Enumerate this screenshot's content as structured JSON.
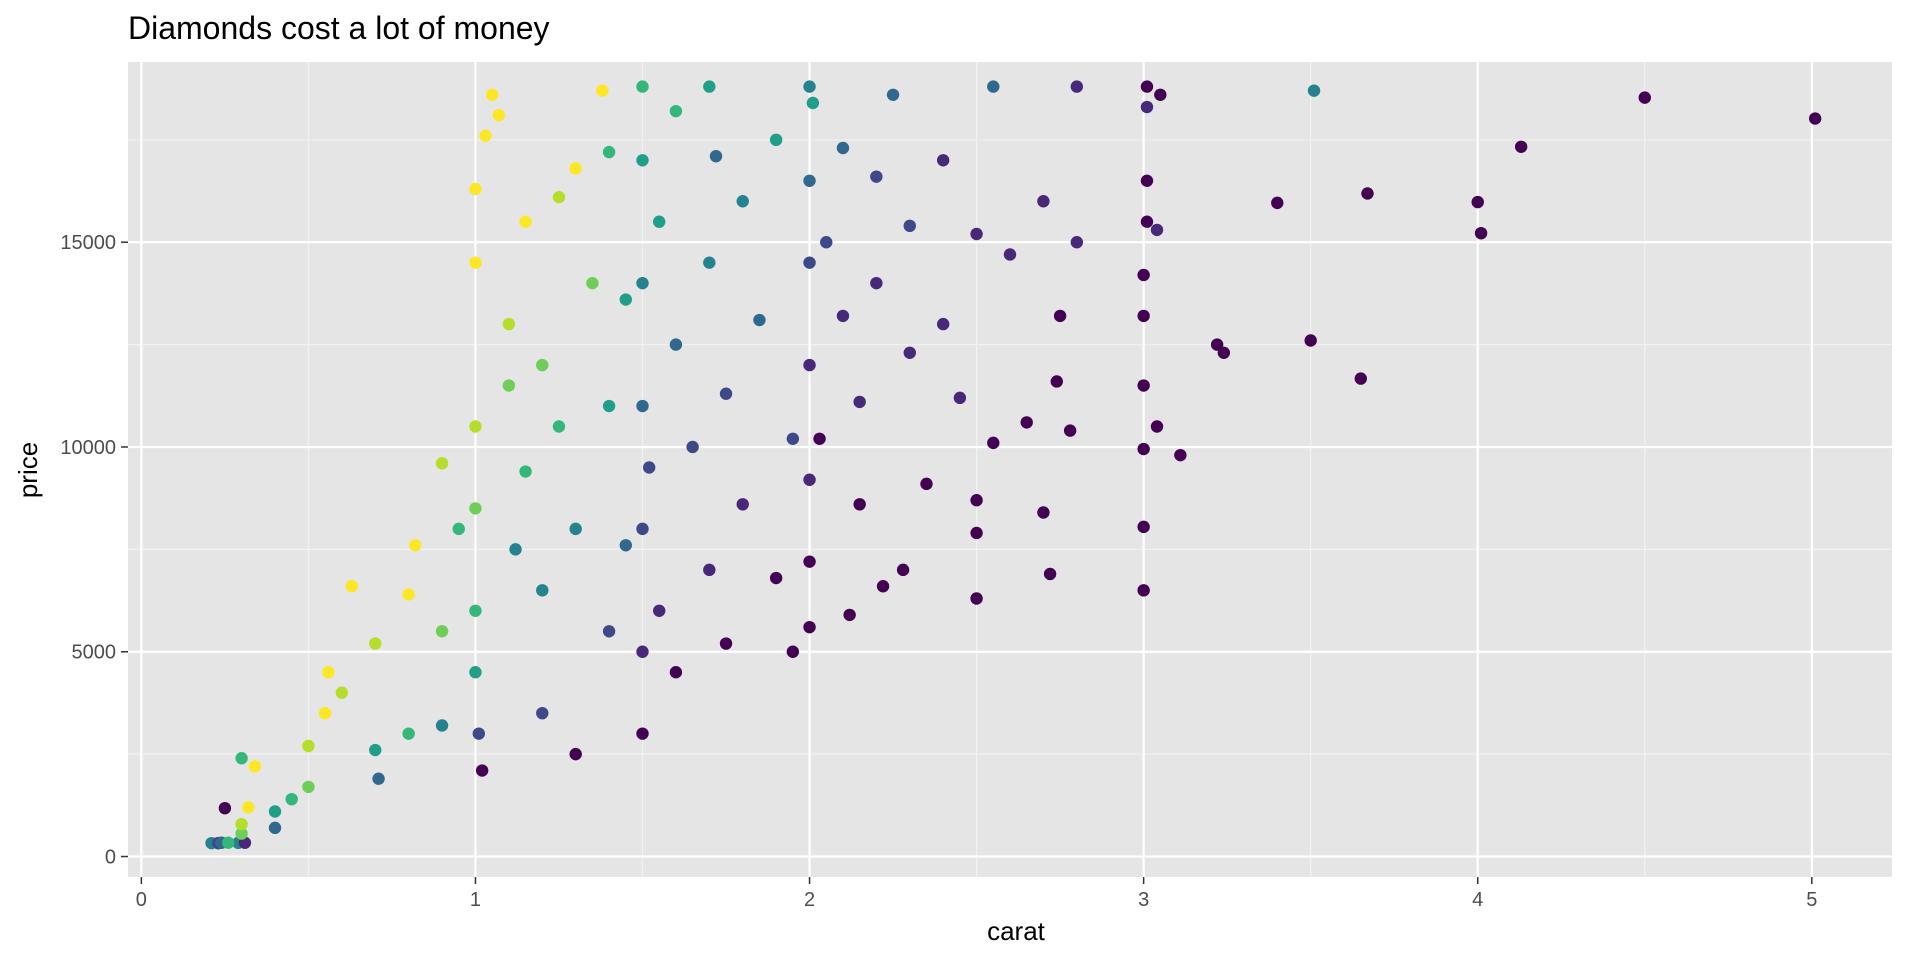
{
  "chart_data": {
    "type": "scatter",
    "title": "Diamonds cost a lot of money",
    "xlabel": "carat",
    "ylabel": "price",
    "xlim": [
      -0.04,
      5.24
    ],
    "ylim": [
      -500,
      19400
    ],
    "x_ticks": [
      0,
      1,
      2,
      3,
      4,
      5
    ],
    "x_tick_labels": [
      "0",
      "1",
      "2",
      "3",
      "4",
      "5"
    ],
    "x_minor_ticks": [
      0.5,
      1.5,
      2.5,
      3.5,
      4.5
    ],
    "y_ticks": [
      0,
      5000,
      10000,
      15000
    ],
    "y_tick_labels": [
      "0",
      "5000",
      "10000",
      "15000"
    ],
    "y_minor_ticks": [
      2500,
      7500,
      12500,
      17500
    ],
    "grid": true,
    "legend": "none",
    "colors": {
      "panel_background": "#e5e5e5",
      "grid_major": "#ffffff",
      "grid_minor": "#f2f2f2",
      "palette": [
        "#440154",
        "#482878",
        "#3e4989",
        "#31688e",
        "#26828e",
        "#1f9e89",
        "#35b779",
        "#6ece58",
        "#b5de2b",
        "#fde725"
      ]
    },
    "points_note_free": true,
    "points": [
      [
        0.23,
        326,
        5
      ],
      [
        0.21,
        326,
        4
      ],
      [
        0.23,
        327,
        2
      ],
      [
        0.29,
        334,
        4
      ],
      [
        0.31,
        335,
        1
      ],
      [
        0.24,
        336,
        3
      ],
      [
        0.26,
        337,
        6
      ],
      [
        0.3,
        560,
        7
      ],
      [
        0.3,
        790,
        8
      ],
      [
        0.32,
        1200,
        9
      ],
      [
        0.25,
        1180,
        0
      ],
      [
        0.34,
        2200,
        9
      ],
      [
        0.3,
        2400,
        6
      ],
      [
        0.4,
        1100,
        5
      ],
      [
        0.4,
        700,
        3
      ],
      [
        0.45,
        1400,
        6
      ],
      [
        0.5,
        1700,
        7
      ],
      [
        0.5,
        2700,
        8
      ],
      [
        0.55,
        3500,
        9
      ],
      [
        0.56,
        4500,
        9
      ],
      [
        0.6,
        4000,
        8
      ],
      [
        0.63,
        6600,
        9
      ],
      [
        0.7,
        5200,
        8
      ],
      [
        0.7,
        2600,
        5
      ],
      [
        0.71,
        1900,
        3
      ],
      [
        0.8,
        3000,
        6
      ],
      [
        0.8,
        6400,
        9
      ],
      [
        0.82,
        7600,
        9
      ],
      [
        0.9,
        3200,
        4
      ],
      [
        0.9,
        5500,
        7
      ],
      [
        0.9,
        9600,
        8
      ],
      [
        0.95,
        8000,
        6
      ],
      [
        1.0,
        4500,
        5
      ],
      [
        1.0,
        6000,
        6
      ],
      [
        1.0,
        8500,
        7
      ],
      [
        1.0,
        10500,
        8
      ],
      [
        1.0,
        14500,
        9
      ],
      [
        1.0,
        16300,
        9
      ],
      [
        1.02,
        2100,
        0
      ],
      [
        1.01,
        3000,
        2
      ],
      [
        1.03,
        17600,
        9
      ],
      [
        1.05,
        18600,
        9
      ],
      [
        1.07,
        18100,
        9
      ],
      [
        1.1,
        13000,
        8
      ],
      [
        1.1,
        11500,
        7
      ],
      [
        1.12,
        7500,
        4
      ],
      [
        1.15,
        9400,
        6
      ],
      [
        1.15,
        15500,
        9
      ],
      [
        1.2,
        6500,
        4
      ],
      [
        1.2,
        12000,
        7
      ],
      [
        1.2,
        3500,
        2
      ],
      [
        1.25,
        16100,
        8
      ],
      [
        1.25,
        10500,
        6
      ],
      [
        1.3,
        16800,
        9
      ],
      [
        1.3,
        8000,
        4
      ],
      [
        1.3,
        2500,
        0
      ],
      [
        1.35,
        14000,
        7
      ],
      [
        1.38,
        18700,
        9
      ],
      [
        1.4,
        11000,
        5
      ],
      [
        1.4,
        5500,
        2
      ],
      [
        1.4,
        17200,
        6
      ],
      [
        1.45,
        7600,
        3
      ],
      [
        1.45,
        13600,
        5
      ],
      [
        1.5,
        3000,
        0
      ],
      [
        1.5,
        5000,
        1
      ],
      [
        1.5,
        8000,
        2
      ],
      [
        1.5,
        11000,
        3
      ],
      [
        1.5,
        14000,
        4
      ],
      [
        1.5,
        17000,
        5
      ],
      [
        1.5,
        18800,
        6
      ],
      [
        1.52,
        9500,
        2
      ],
      [
        1.55,
        15500,
        5
      ],
      [
        1.55,
        6000,
        1
      ],
      [
        1.6,
        12500,
        3
      ],
      [
        1.6,
        18200,
        6
      ],
      [
        1.6,
        4500,
        0
      ],
      [
        1.65,
        10000,
        2
      ],
      [
        1.7,
        14500,
        4
      ],
      [
        1.7,
        18800,
        5
      ],
      [
        1.7,
        7000,
        1
      ],
      [
        1.72,
        17100,
        3
      ],
      [
        1.75,
        5200,
        0
      ],
      [
        1.75,
        11300,
        2
      ],
      [
        1.8,
        16000,
        4
      ],
      [
        1.8,
        8600,
        1
      ],
      [
        1.85,
        13100,
        3
      ],
      [
        1.9,
        6800,
        0
      ],
      [
        1.9,
        17500,
        5
      ],
      [
        1.95,
        10200,
        2
      ],
      [
        1.95,
        5000,
        0
      ],
      [
        2.0,
        5600,
        0
      ],
      [
        2.0,
        7200,
        0
      ],
      [
        2.0,
        9200,
        1
      ],
      [
        2.0,
        12000,
        1
      ],
      [
        2.0,
        14500,
        2
      ],
      [
        2.0,
        16500,
        3
      ],
      [
        2.0,
        18800,
        4
      ],
      [
        2.01,
        18400,
        5
      ],
      [
        2.03,
        10200,
        0
      ],
      [
        2.05,
        15000,
        2
      ],
      [
        2.1,
        13200,
        1
      ],
      [
        2.1,
        17300,
        3
      ],
      [
        2.12,
        5900,
        0
      ],
      [
        2.15,
        11100,
        1
      ],
      [
        2.15,
        8600,
        0
      ],
      [
        2.2,
        16600,
        2
      ],
      [
        2.2,
        14000,
        1
      ],
      [
        2.22,
        6600,
        0
      ],
      [
        2.25,
        18600,
        3
      ],
      [
        2.28,
        7000,
        0
      ],
      [
        2.3,
        12300,
        1
      ],
      [
        2.3,
        15400,
        2
      ],
      [
        2.35,
        9100,
        0
      ],
      [
        2.4,
        17000,
        1
      ],
      [
        2.4,
        13000,
        1
      ],
      [
        2.45,
        11200,
        1
      ],
      [
        2.5,
        6300,
        0
      ],
      [
        2.5,
        8700,
        0
      ],
      [
        2.5,
        7900,
        0
      ],
      [
        2.5,
        15200,
        1
      ],
      [
        2.55,
        18800,
        3
      ],
      [
        2.55,
        10100,
        0
      ],
      [
        2.6,
        14700,
        1
      ],
      [
        2.65,
        10600,
        0
      ],
      [
        2.7,
        8400,
        0
      ],
      [
        2.7,
        16000,
        1
      ],
      [
        2.72,
        6900,
        0
      ],
      [
        2.74,
        11600,
        0
      ],
      [
        2.75,
        13200,
        0
      ],
      [
        2.78,
        10400,
        0
      ],
      [
        2.8,
        18800,
        1
      ],
      [
        2.8,
        15000,
        1
      ],
      [
        3.0,
        6500,
        0
      ],
      [
        3.0,
        8050,
        0
      ],
      [
        3.0,
        9950,
        0
      ],
      [
        3.0,
        11500,
        0
      ],
      [
        3.0,
        13200,
        0
      ],
      [
        3.0,
        14200,
        0
      ],
      [
        3.01,
        15500,
        0
      ],
      [
        3.01,
        16500,
        0
      ],
      [
        3.01,
        18300,
        1
      ],
      [
        3.01,
        18800,
        0
      ],
      [
        3.04,
        10500,
        0
      ],
      [
        3.04,
        15300,
        1
      ],
      [
        3.05,
        18600,
        0
      ],
      [
        3.11,
        9800,
        0
      ],
      [
        3.22,
        12500,
        0
      ],
      [
        3.24,
        12300,
        0
      ],
      [
        3.4,
        15960,
        0
      ],
      [
        3.5,
        12600,
        0
      ],
      [
        3.51,
        18700,
        4
      ],
      [
        3.65,
        11670,
        0
      ],
      [
        3.67,
        16190,
        0
      ],
      [
        4.0,
        15980,
        0
      ],
      [
        4.01,
        15220,
        0
      ],
      [
        4.13,
        17330,
        0
      ],
      [
        4.5,
        18530,
        0
      ],
      [
        5.01,
        18020,
        0
      ]
    ]
  }
}
